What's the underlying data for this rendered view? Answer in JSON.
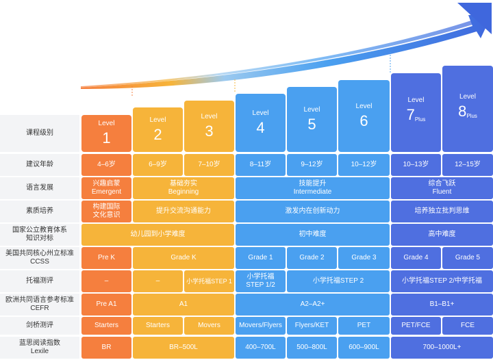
{
  "colors": {
    "orange": "#f57f3e",
    "yellow": "#f6b43a",
    "blue": "#4aa0f0",
    "indigo": "#4f6fe0",
    "label_bg": "#f3f4f6"
  },
  "levels": [
    {
      "word": "Level",
      "num": "1",
      "plus": ""
    },
    {
      "word": "Level",
      "num": "2",
      "plus": ""
    },
    {
      "word": "Level",
      "num": "3",
      "plus": ""
    },
    {
      "word": "Level",
      "num": "4",
      "plus": ""
    },
    {
      "word": "Level",
      "num": "5",
      "plus": ""
    },
    {
      "word": "Level",
      "num": "6",
      "plus": ""
    },
    {
      "word": "Level",
      "num": "7",
      "plus": "Plus"
    },
    {
      "word": "Level",
      "num": "8",
      "plus": "Plus"
    }
  ],
  "rows": {
    "course": "课程级别",
    "age": "建议年龄",
    "language": "语言发展",
    "quality": "素质培养",
    "national_1": "国家公立教育体系",
    "national_2": "知识对标",
    "ccss_1": "美国共同核心州立标准",
    "ccss_2": "CCSS",
    "toefl": "托福测评",
    "cefr_1": "欧洲共同语言参考标准",
    "cefr_2": "CEFR",
    "cambridge": "剑桥测评",
    "lexile_1": "蓝思阅读指数",
    "lexile_2": "Lexile"
  },
  "age": [
    "4–6岁",
    "6–9岁",
    "7–10岁",
    "8–11岁",
    "9–12岁",
    "10–12岁",
    "10–13岁",
    "12–15岁"
  ],
  "language": {
    "g1_cn": "兴趣启蒙",
    "g1_en": "Emergent",
    "g2_cn": "基础夯实",
    "g2_en": "Beginning",
    "g3_cn": "技能提升",
    "g3_en": "Intermediate",
    "g4_cn": "综合飞跃",
    "g4_en": "Fluent"
  },
  "quality": {
    "g1_a": "构建国际",
    "g1_b": "文化意识",
    "g2": "提升交流沟通能力",
    "g3": "激发内在创新动力",
    "g4": "培养独立批判思维"
  },
  "national": {
    "g1": "幼儿园到小学难度",
    "g2": "初中难度",
    "g3": "高中难度"
  },
  "ccss": {
    "c1": "Pre K",
    "c2": "Grade K",
    "c3": "Grade 1",
    "c4": "Grade 2",
    "c5": "Grade 3",
    "c6": "Grade 4",
    "c7": "Grade 5"
  },
  "toefl": {
    "c1": "–",
    "c2": "–",
    "c3": "小学托福STEP 1",
    "c4_a": "小学托福",
    "c4_b": "STEP 1/2",
    "c5": "小学托福STEP 2",
    "c6": "小学托福STEP 2/中学托福"
  },
  "cefr": {
    "c1": "Pre A1",
    "c2": "A1",
    "c3": "A2–A2+",
    "c4": "B1–B1+"
  },
  "cambridge": {
    "c1": "Starters",
    "c2": "Starters",
    "c3": "Movers",
    "c4": "Movers/Flyers",
    "c5": "Flyers/KET",
    "c6": "PET",
    "c7": "PET/FCE",
    "c8": "FCE"
  },
  "lexile": {
    "c1": "BR",
    "c2": "BR–500L",
    "c3": "400–700L",
    "c4": "500–800L",
    "c5": "600–900L",
    "c6": "700–1000L+"
  }
}
